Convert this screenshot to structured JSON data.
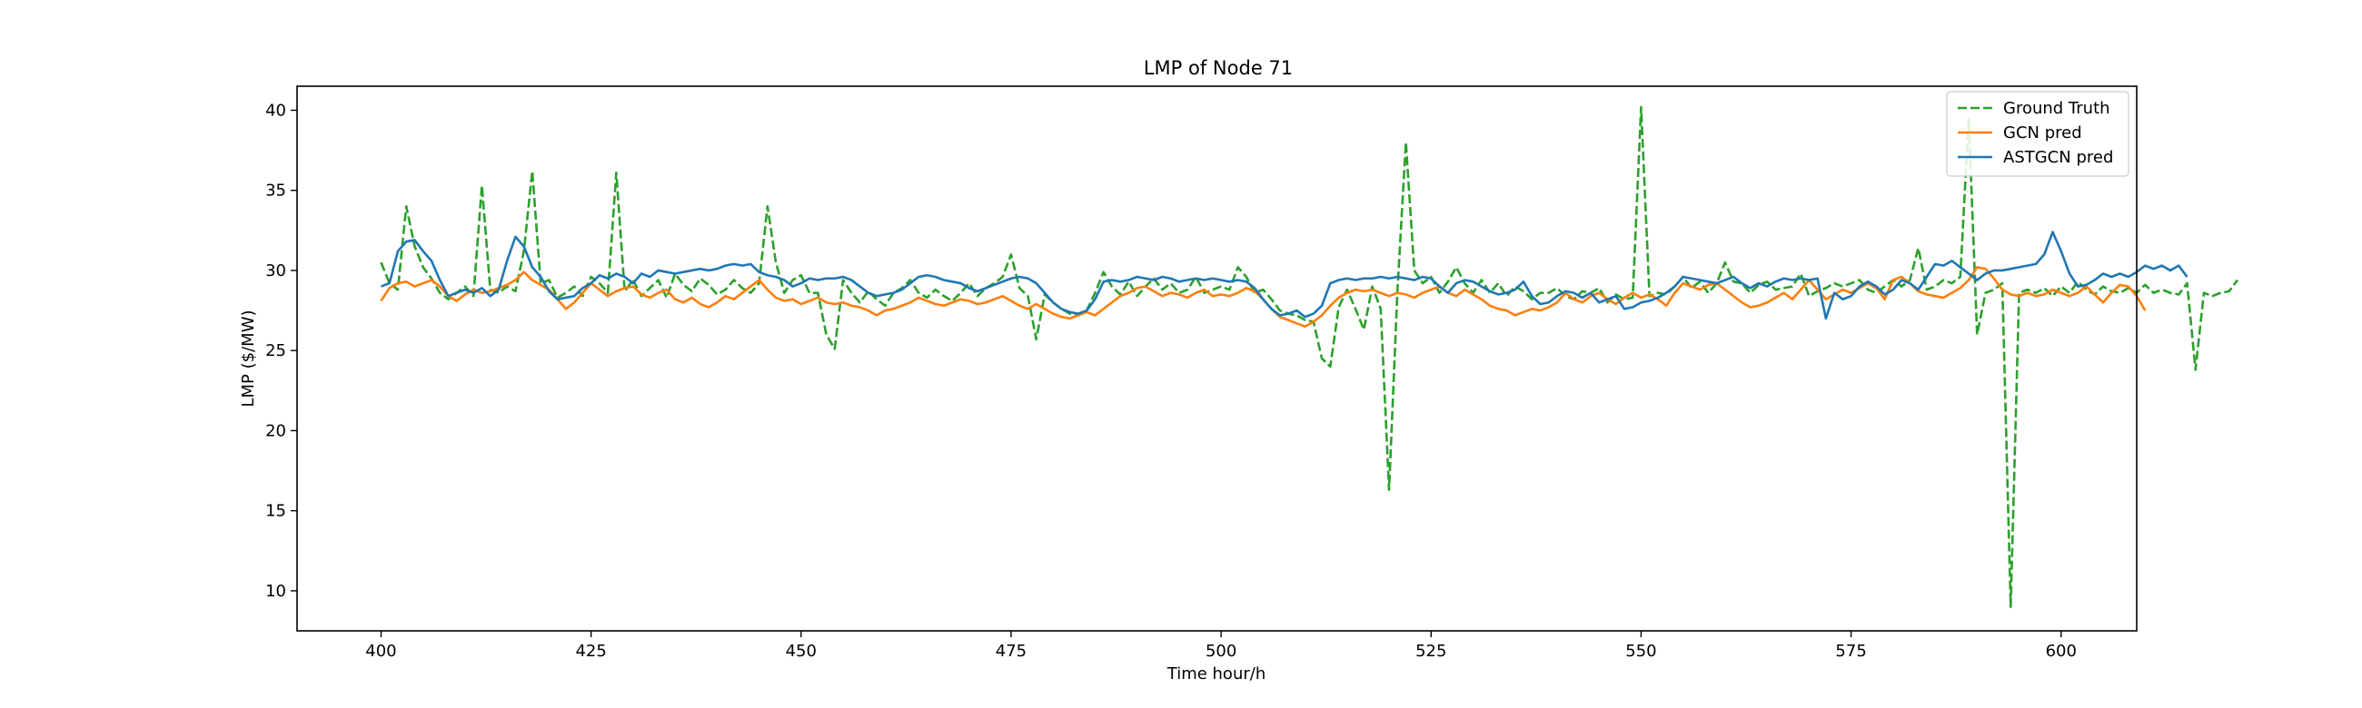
{
  "chart_data": {
    "type": "line",
    "title": "LMP of Node 71",
    "xlabel": "Time hour/h",
    "ylabel": "LMP ($/MW)",
    "xlim": [
      390,
      609
    ],
    "ylim": [
      7.5,
      41.5
    ],
    "xticks": [
      400,
      425,
      450,
      475,
      500,
      525,
      550,
      575,
      600
    ],
    "yticks": [
      10,
      15,
      20,
      25,
      30,
      35,
      40
    ],
    "legend_position": "top-right",
    "grid": false,
    "x_start": 400,
    "series": [
      {
        "name": "Ground Truth",
        "color": "#2ca02c",
        "style": "dashed",
        "values": [
          30.5,
          29.2,
          28.8,
          34.0,
          31.5,
          30.2,
          29.5,
          28.6,
          28.2,
          28.6,
          29.0,
          28.4,
          35.3,
          28.8,
          28.6,
          29.0,
          28.7,
          31.2,
          36.2,
          29.2,
          29.4,
          28.3,
          28.6,
          29.0,
          28.4,
          29.6,
          29.2,
          28.6,
          36.1,
          28.7,
          29.4,
          28.4,
          28.9,
          29.4,
          28.3,
          29.8,
          29.1,
          28.7,
          29.5,
          29.1,
          28.5,
          28.8,
          29.4,
          28.9,
          28.6,
          29.2,
          34.0,
          30.5,
          28.6,
          29.4,
          29.7,
          28.6,
          28.6,
          26.0,
          25.1,
          29.4,
          28.6,
          28.0,
          28.7,
          28.2,
          27.8,
          28.6,
          28.9,
          29.4,
          28.6,
          28.3,
          28.8,
          28.4,
          28.1,
          28.6,
          29.2,
          28.4,
          28.9,
          29.2,
          29.6,
          31.0,
          28.9,
          28.4,
          25.7,
          28.5,
          28.0,
          27.6,
          27.3,
          27.2,
          27.5,
          28.6,
          29.9,
          29.0,
          28.5,
          29.3,
          28.4,
          29.0,
          29.5,
          28.8,
          29.2,
          28.6,
          28.8,
          29.6,
          28.6,
          28.8,
          29.0,
          28.8,
          30.2,
          29.6,
          28.6,
          28.8,
          28.2,
          27.5,
          27.3,
          27.2,
          26.9,
          26.8,
          24.5,
          24.0,
          27.7,
          28.8,
          27.6,
          26.3,
          29.0,
          27.6,
          16.3,
          28.8,
          38.0,
          30.0,
          29.2,
          29.6,
          28.6,
          29.3,
          30.2,
          29.2,
          28.6,
          29.4,
          28.6,
          29.2,
          28.4,
          29.0,
          28.7,
          28.2,
          28.6,
          28.6,
          28.9,
          28.4,
          28.2,
          28.7,
          28.6,
          28.9,
          28.0,
          28.5,
          28.2,
          28.3,
          40.2,
          28.4,
          28.6,
          28.5,
          29.0,
          29.6,
          28.9,
          29.3,
          28.6,
          29.2,
          30.5,
          29.3,
          29.2,
          28.6,
          29.1,
          29.3,
          28.8,
          28.9,
          29.0,
          29.8,
          28.4,
          28.7,
          28.9,
          29.2,
          29.0,
          29.2,
          29.4,
          28.8,
          28.6,
          29.0,
          29.4,
          29.0,
          29.4,
          31.4,
          28.8,
          29.0,
          29.4,
          29.2,
          29.6,
          39.5,
          26.0,
          28.6,
          28.8,
          29.2,
          9.0,
          28.6,
          28.8,
          28.6,
          28.9,
          28.4,
          29.0,
          28.6,
          29.3,
          28.8,
          28.5,
          29.0,
          28.7,
          28.6,
          28.9,
          28.6,
          29.1,
          28.6,
          28.8,
          28.6,
          28.5,
          29.2,
          23.8,
          28.6,
          28.4,
          28.6,
          28.7,
          29.4
        ]
      },
      {
        "name": "GCN pred",
        "color": "#ff7f0e",
        "style": "solid",
        "values": [
          28.1,
          28.9,
          29.2,
          29.3,
          29.0,
          29.2,
          29.4,
          29.0,
          28.4,
          28.1,
          28.5,
          28.8,
          28.6,
          28.7,
          28.9,
          29.1,
          29.4,
          29.9,
          29.4,
          29.1,
          28.8,
          28.2,
          27.6,
          28.0,
          28.6,
          29.2,
          28.8,
          28.4,
          28.7,
          28.9,
          29.0,
          28.5,
          28.3,
          28.6,
          28.8,
          28.2,
          28.0,
          28.3,
          27.9,
          27.7,
          28.0,
          28.4,
          28.2,
          28.6,
          29.0,
          29.4,
          28.8,
          28.3,
          28.1,
          28.2,
          27.9,
          28.1,
          28.3,
          28.0,
          27.9,
          28.0,
          27.8,
          27.7,
          27.5,
          27.2,
          27.5,
          27.6,
          27.8,
          28.0,
          28.3,
          28.1,
          27.9,
          27.8,
          28.0,
          28.2,
          28.1,
          27.9,
          28.0,
          28.2,
          28.4,
          28.1,
          27.8,
          27.6,
          27.9,
          27.6,
          27.3,
          27.1,
          27.0,
          27.2,
          27.4,
          27.2,
          27.6,
          28.0,
          28.4,
          28.6,
          28.9,
          29.0,
          28.7,
          28.4,
          28.6,
          28.5,
          28.3,
          28.6,
          28.8,
          28.4,
          28.5,
          28.4,
          28.6,
          28.9,
          28.7,
          28.2,
          27.6,
          27.1,
          26.9,
          26.7,
          26.5,
          26.8,
          27.2,
          27.8,
          28.3,
          28.6,
          28.8,
          28.7,
          28.8,
          28.6,
          28.4,
          28.6,
          28.5,
          28.3,
          28.6,
          28.8,
          29.0,
          28.6,
          28.4,
          28.8,
          28.5,
          28.2,
          27.8,
          27.6,
          27.5,
          27.2,
          27.4,
          27.6,
          27.5,
          27.7,
          28.0,
          28.6,
          28.2,
          28.0,
          28.4,
          28.6,
          28.2,
          27.9,
          28.3,
          28.6,
          28.3,
          28.5,
          28.2,
          27.8,
          28.6,
          29.2,
          29.0,
          28.8,
          29.1,
          29.2,
          28.8,
          28.4,
          28.0,
          27.7,
          27.8,
          28.0,
          28.3,
          28.6,
          28.2,
          28.8,
          29.4,
          28.8,
          28.2,
          28.5,
          28.8,
          28.6,
          28.9,
          29.2,
          28.9,
          28.2,
          29.4,
          29.6,
          29.2,
          28.7,
          28.5,
          28.4,
          28.3,
          28.6,
          28.9,
          29.4,
          30.2,
          30.1,
          29.5,
          28.8,
          28.5,
          28.4,
          28.6,
          28.4,
          28.5,
          28.8,
          28.6,
          28.4,
          28.6,
          29.0,
          28.5,
          28.0,
          28.6,
          29.1,
          29.0,
          28.4,
          27.5
        ]
      },
      {
        "name": "ASTGCN pred",
        "color": "#1f77b4",
        "style": "solid",
        "values": [
          29.0,
          29.2,
          31.2,
          31.8,
          31.9,
          31.2,
          30.6,
          29.4,
          28.4,
          28.6,
          28.8,
          28.6,
          28.9,
          28.4,
          28.8,
          30.6,
          32.1,
          31.5,
          30.2,
          29.6,
          28.7,
          28.2,
          28.3,
          28.4,
          28.9,
          29.2,
          29.7,
          29.5,
          29.8,
          29.6,
          29.2,
          29.8,
          29.6,
          30.0,
          29.9,
          29.8,
          29.9,
          30.0,
          30.1,
          30.0,
          30.1,
          30.3,
          30.4,
          30.3,
          30.4,
          29.9,
          29.7,
          29.6,
          29.4,
          29.0,
          29.2,
          29.5,
          29.4,
          29.5,
          29.5,
          29.6,
          29.4,
          29.0,
          28.6,
          28.4,
          28.5,
          28.6,
          28.8,
          29.2,
          29.6,
          29.7,
          29.6,
          29.4,
          29.3,
          29.2,
          28.9,
          28.7,
          28.9,
          29.1,
          29.3,
          29.5,
          29.6,
          29.5,
          29.2,
          28.6,
          28.0,
          27.6,
          27.4,
          27.3,
          27.5,
          28.2,
          29.3,
          29.4,
          29.3,
          29.4,
          29.6,
          29.5,
          29.4,
          29.6,
          29.5,
          29.3,
          29.4,
          29.5,
          29.4,
          29.5,
          29.4,
          29.3,
          29.4,
          29.3,
          28.9,
          28.2,
          27.6,
          27.2,
          27.3,
          27.5,
          27.1,
          27.3,
          27.8,
          29.2,
          29.4,
          29.5,
          29.4,
          29.5,
          29.5,
          29.6,
          29.5,
          29.6,
          29.5,
          29.4,
          29.6,
          29.5,
          29.0,
          28.6,
          29.2,
          29.4,
          29.3,
          29.0,
          28.7,
          28.5,
          28.6,
          28.8,
          29.3,
          28.4,
          27.9,
          28.0,
          28.4,
          28.7,
          28.6,
          28.3,
          28.6,
          28.0,
          28.2,
          28.4,
          27.6,
          27.7,
          28.0,
          28.1,
          28.3,
          28.6,
          29.0,
          29.6,
          29.5,
          29.4,
          29.3,
          29.2,
          29.4,
          29.6,
          29.2,
          28.9,
          29.2,
          29.0,
          29.3,
          29.5,
          29.4,
          29.5,
          29.4,
          29.5,
          27.0,
          28.6,
          28.2,
          28.4,
          29.0,
          29.3,
          29.0,
          28.5,
          28.8,
          29.4,
          29.2,
          28.8,
          29.6,
          30.4,
          30.3,
          30.6,
          30.2,
          29.8,
          29.4,
          29.8,
          30.0,
          30.0,
          30.1,
          30.2,
          30.3,
          30.4,
          31.0,
          32.4,
          31.2,
          29.8,
          29.0,
          29.1,
          29.4,
          29.8,
          29.6,
          29.8,
          29.6,
          29.9,
          30.3,
          30.1,
          30.3,
          30.0,
          30.3,
          29.6
        ]
      }
    ]
  }
}
